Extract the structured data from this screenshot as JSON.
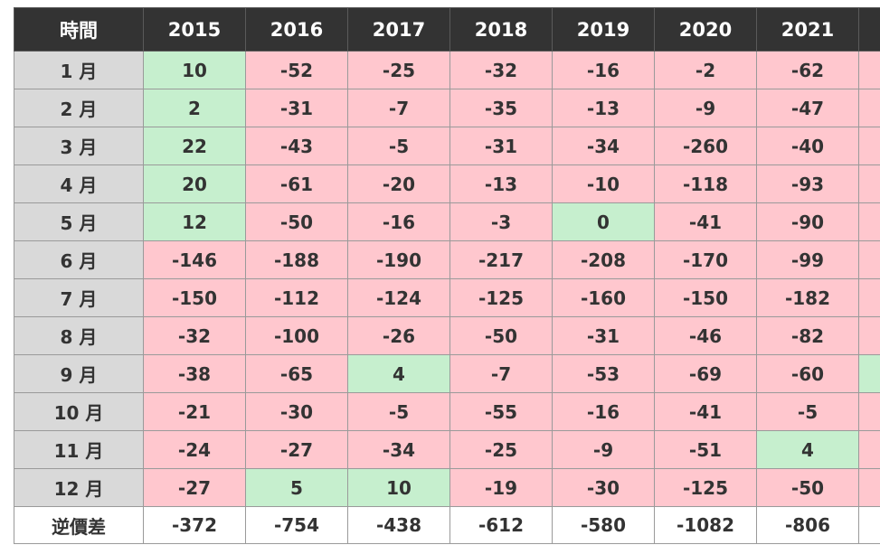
{
  "chart_data": {
    "type": "table",
    "header": {
      "corner": "時間",
      "years": [
        "2015",
        "2016",
        "2017",
        "2018",
        "2019",
        "2020",
        "2021"
      ]
    },
    "rows": [
      {
        "label": "1 月",
        "values": [
          "10",
          "-52",
          "-25",
          "-32",
          "-16",
          "-2",
          "-62"
        ],
        "extra": "neg"
      },
      {
        "label": "2 月",
        "values": [
          "2",
          "-31",
          "-7",
          "-35",
          "-13",
          "-9",
          "-47"
        ],
        "extra": "neg"
      },
      {
        "label": "3 月",
        "values": [
          "22",
          "-43",
          "-5",
          "-31",
          "-34",
          "-260",
          "-40"
        ],
        "extra": "neg"
      },
      {
        "label": "4 月",
        "values": [
          "20",
          "-61",
          "-20",
          "-13",
          "-10",
          "-118",
          "-93"
        ],
        "extra": "neg"
      },
      {
        "label": "5 月",
        "values": [
          "12",
          "-50",
          "-16",
          "-3",
          "0",
          "-41",
          "-90"
        ],
        "extra": "neg"
      },
      {
        "label": "6 月",
        "values": [
          "-146",
          "-188",
          "-190",
          "-217",
          "-208",
          "-170",
          "-99"
        ],
        "extra": "neg"
      },
      {
        "label": "7 月",
        "values": [
          "-150",
          "-112",
          "-124",
          "-125",
          "-160",
          "-150",
          "-182"
        ],
        "extra": "neg"
      },
      {
        "label": "8 月",
        "values": [
          "-32",
          "-100",
          "-26",
          "-50",
          "-31",
          "-46",
          "-82"
        ],
        "extra": "neg"
      },
      {
        "label": "9 月",
        "values": [
          "-38",
          "-65",
          "4",
          "-7",
          "-53",
          "-69",
          "-60"
        ],
        "extra": "pos"
      },
      {
        "label": "10 月",
        "values": [
          "-21",
          "-30",
          "-5",
          "-55",
          "-16",
          "-41",
          "-5"
        ],
        "extra": "neg"
      },
      {
        "label": "11 月",
        "values": [
          "-24",
          "-27",
          "-34",
          "-25",
          "-9",
          "-51",
          "4"
        ],
        "extra": "neg"
      },
      {
        "label": "12 月",
        "values": [
          "-27",
          "5",
          "10",
          "-19",
          "-30",
          "-125",
          "-50"
        ],
        "extra": "neg"
      }
    ],
    "total": {
      "label": "逆價差",
      "values": [
        "-372",
        "-754",
        "-438",
        "-612",
        "-580",
        "-1082",
        "-806"
      ]
    },
    "colors": {
      "header_bg": "#333333",
      "header_text": "#ffffff",
      "month_bg": "#d9d9d9",
      "negative_bg": "#ffc7ce",
      "positive_bg": "#c6efce",
      "text": "#333333"
    }
  }
}
